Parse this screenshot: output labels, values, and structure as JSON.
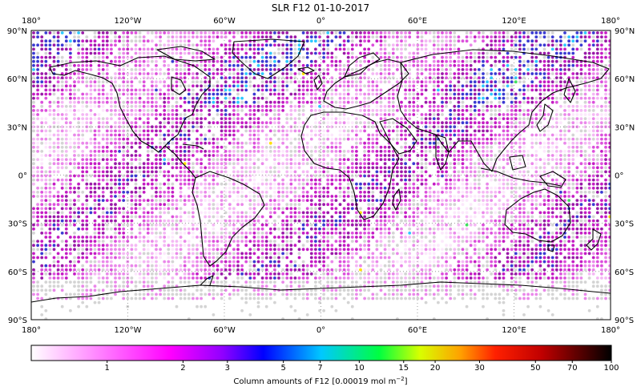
{
  "title": "SLR F12 01-10-2017",
  "map": {
    "lon_ticks": [
      "180°",
      "120°W",
      "60°W",
      "0°",
      "60°E",
      "120°E",
      "180°"
    ],
    "lat_ticks": [
      "90°N",
      "60°N",
      "30°N",
      "0°",
      "30°S",
      "60°S",
      "90°S"
    ],
    "colors": {
      "background_dot": "#d4d4d4",
      "coast": "#000000",
      "dot_scale": [
        "#fce8fc",
        "#f4b8f4",
        "#ea88ea",
        "#dc50dc",
        "#c41cc4",
        "#9a1aa8",
        "#3a3ad2",
        "#2ec8ff",
        "#40e060",
        "#ffe000"
      ]
    }
  },
  "colorbar": {
    "ticks": [
      "1",
      "2",
      "3",
      "5",
      "7",
      "10",
      "15",
      "20",
      "30",
      "50",
      "70",
      "100"
    ],
    "label_text": "Column amounts of F12 [0.00019 mol m",
    "label_sup": "−2",
    "label_close": "]",
    "stops": [
      {
        "v": 0,
        "c": "#ffffff"
      },
      {
        "v": 0.24,
        "c": "#ff00ff"
      },
      {
        "v": 0.33,
        "c": "#9000ff"
      },
      {
        "v": 0.4,
        "c": "#0000ff"
      },
      {
        "v": 0.5,
        "c": "#00c8ff"
      },
      {
        "v": 0.6,
        "c": "#00ff40"
      },
      {
        "v": 0.67,
        "c": "#d8ff00"
      },
      {
        "v": 0.74,
        "c": "#ffa000"
      },
      {
        "v": 0.8,
        "c": "#ff2000"
      },
      {
        "v": 0.88,
        "c": "#c00000"
      },
      {
        "v": 1.0,
        "c": "#000000"
      }
    ]
  }
}
